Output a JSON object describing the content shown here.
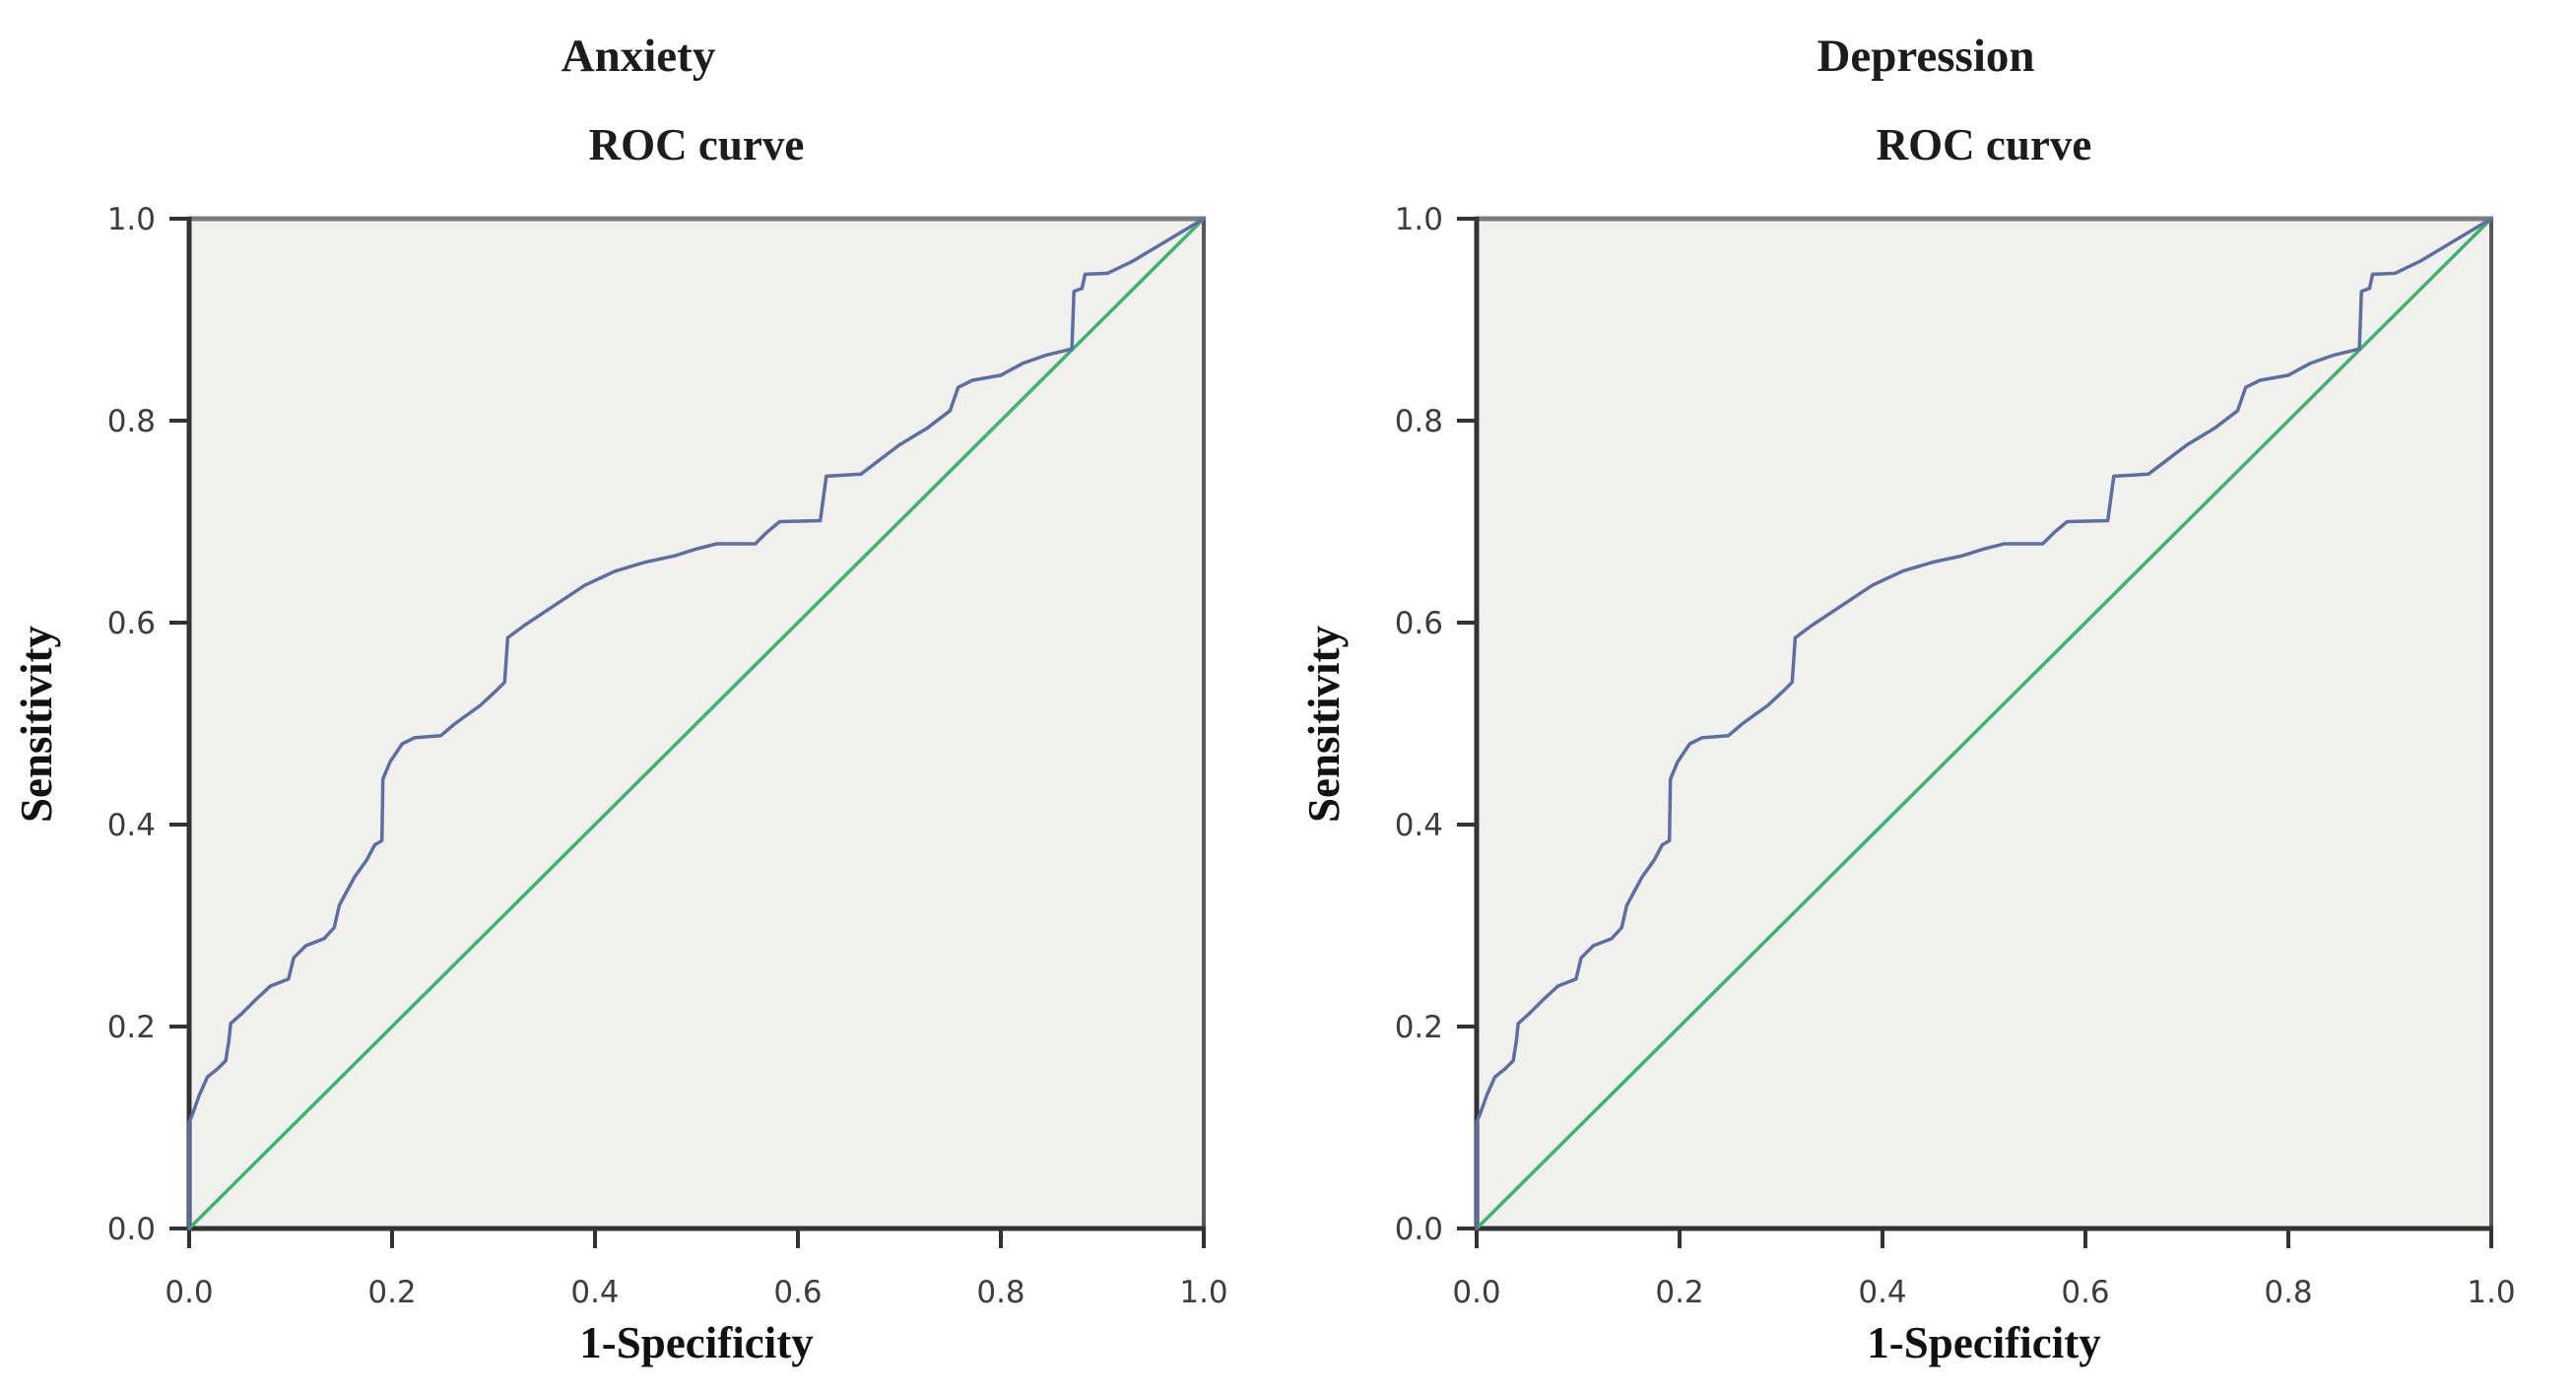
{
  "page": {
    "background": "#ffffff"
  },
  "chart_data": [
    {
      "type": "line",
      "title": "Anxiety",
      "subtitle": "ROC curve",
      "xlabel": "1-Specificity",
      "ylabel": "Sensitivity",
      "xlim": [
        0.0,
        1.0
      ],
      "ylim": [
        0.0,
        1.0
      ],
      "xticks": [
        "0.0",
        "0.2",
        "0.4",
        "0.6",
        "0.8",
        "1.0"
      ],
      "yticks": [
        "0.0",
        "0.2",
        "0.4",
        "0.6",
        "0.8",
        "1.0"
      ],
      "grid": false,
      "legend": "none",
      "plot_background": "#f0f0ee",
      "axis_color": "#333333",
      "top_border_color": "#7c7c7c",
      "right_border_color": "#585858",
      "series": [
        {
          "name": "ROC curve",
          "color": "#5f6ea0",
          "points": [
            [
              0.0,
              0.0
            ],
            [
              0.0,
              0.105
            ],
            [
              0.004,
              0.115
            ],
            [
              0.01,
              0.132
            ],
            [
              0.018,
              0.15
            ],
            [
              0.028,
              0.158
            ],
            [
              0.036,
              0.166
            ],
            [
              0.039,
              0.185
            ],
            [
              0.041,
              0.203
            ],
            [
              0.052,
              0.213
            ],
            [
              0.065,
              0.226
            ],
            [
              0.08,
              0.24
            ],
            [
              0.098,
              0.247
            ],
            [
              0.103,
              0.268
            ],
            [
              0.115,
              0.28
            ],
            [
              0.133,
              0.287
            ],
            [
              0.143,
              0.298
            ],
            [
              0.148,
              0.32
            ],
            [
              0.163,
              0.348
            ],
            [
              0.175,
              0.365
            ],
            [
              0.183,
              0.38
            ],
            [
              0.19,
              0.384
            ],
            [
              0.191,
              0.445
            ],
            [
              0.198,
              0.462
            ],
            [
              0.21,
              0.48
            ],
            [
              0.222,
              0.486
            ],
            [
              0.248,
              0.488
            ],
            [
              0.262,
              0.5
            ],
            [
              0.287,
              0.518
            ],
            [
              0.303,
              0.533
            ],
            [
              0.311,
              0.541
            ],
            [
              0.314,
              0.585
            ],
            [
              0.33,
              0.597
            ],
            [
              0.36,
              0.617
            ],
            [
              0.39,
              0.637
            ],
            [
              0.42,
              0.651
            ],
            [
              0.45,
              0.66
            ],
            [
              0.478,
              0.666
            ],
            [
              0.5,
              0.673
            ],
            [
              0.52,
              0.678
            ],
            [
              0.558,
              0.678
            ],
            [
              0.57,
              0.69
            ],
            [
              0.582,
              0.7
            ],
            [
              0.622,
              0.701
            ],
            [
              0.628,
              0.745
            ],
            [
              0.662,
              0.747
            ],
            [
              0.7,
              0.776
            ],
            [
              0.728,
              0.793
            ],
            [
              0.75,
              0.81
            ],
            [
              0.758,
              0.833
            ],
            [
              0.772,
              0.84
            ],
            [
              0.8,
              0.845
            ],
            [
              0.822,
              0.857
            ],
            [
              0.845,
              0.865
            ],
            [
              0.87,
              0.871
            ],
            [
              0.872,
              0.928
            ],
            [
              0.88,
              0.931
            ],
            [
              0.883,
              0.945
            ],
            [
              0.905,
              0.946
            ],
            [
              0.93,
              0.958
            ],
            [
              0.96,
              0.976
            ],
            [
              1.0,
              1.0
            ]
          ]
        },
        {
          "name": "Reference diagonal",
          "color": "#3eb271",
          "points": [
            [
              0.0,
              0.0
            ],
            [
              1.0,
              1.0
            ]
          ]
        }
      ]
    },
    {
      "type": "line",
      "title": "Depression",
      "subtitle": "ROC curve",
      "xlabel": "1-Specificity",
      "ylabel": "Sensitivity",
      "xlim": [
        0.0,
        1.0
      ],
      "ylim": [
        0.0,
        1.0
      ],
      "xticks": [
        "0.0",
        "0.2",
        "0.4",
        "0.6",
        "0.8",
        "1.0"
      ],
      "yticks": [
        "0.0",
        "0.2",
        "0.4",
        "0.6",
        "0.8",
        "1.0"
      ],
      "grid": false,
      "legend": "none",
      "plot_background": "#f0f0ee",
      "axis_color": "#333333",
      "top_border_color": "#7c7c7c",
      "right_border_color": "#585858",
      "series": [
        {
          "name": "ROC curve",
          "color": "#5f6ea0",
          "points": [
            [
              0.0,
              0.0
            ],
            [
              0.0,
              0.105
            ],
            [
              0.004,
              0.115
            ],
            [
              0.01,
              0.132
            ],
            [
              0.018,
              0.15
            ],
            [
              0.028,
              0.158
            ],
            [
              0.036,
              0.166
            ],
            [
              0.039,
              0.185
            ],
            [
              0.041,
              0.203
            ],
            [
              0.052,
              0.213
            ],
            [
              0.065,
              0.226
            ],
            [
              0.08,
              0.24
            ],
            [
              0.098,
              0.247
            ],
            [
              0.103,
              0.268
            ],
            [
              0.115,
              0.28
            ],
            [
              0.133,
              0.287
            ],
            [
              0.143,
              0.298
            ],
            [
              0.148,
              0.32
            ],
            [
              0.163,
              0.348
            ],
            [
              0.175,
              0.365
            ],
            [
              0.183,
              0.38
            ],
            [
              0.19,
              0.384
            ],
            [
              0.191,
              0.445
            ],
            [
              0.198,
              0.462
            ],
            [
              0.21,
              0.48
            ],
            [
              0.222,
              0.486
            ],
            [
              0.248,
              0.488
            ],
            [
              0.262,
              0.5
            ],
            [
              0.287,
              0.518
            ],
            [
              0.303,
              0.533
            ],
            [
              0.311,
              0.541
            ],
            [
              0.314,
              0.585
            ],
            [
              0.33,
              0.597
            ],
            [
              0.36,
              0.617
            ],
            [
              0.39,
              0.637
            ],
            [
              0.42,
              0.651
            ],
            [
              0.45,
              0.66
            ],
            [
              0.478,
              0.666
            ],
            [
              0.5,
              0.673
            ],
            [
              0.52,
              0.678
            ],
            [
              0.558,
              0.678
            ],
            [
              0.57,
              0.69
            ],
            [
              0.582,
              0.7
            ],
            [
              0.622,
              0.701
            ],
            [
              0.628,
              0.745
            ],
            [
              0.662,
              0.747
            ],
            [
              0.7,
              0.776
            ],
            [
              0.728,
              0.793
            ],
            [
              0.75,
              0.81
            ],
            [
              0.758,
              0.833
            ],
            [
              0.772,
              0.84
            ],
            [
              0.8,
              0.845
            ],
            [
              0.822,
              0.857
            ],
            [
              0.845,
              0.865
            ],
            [
              0.87,
              0.871
            ],
            [
              0.872,
              0.928
            ],
            [
              0.88,
              0.931
            ],
            [
              0.883,
              0.945
            ],
            [
              0.905,
              0.946
            ],
            [
              0.93,
              0.958
            ],
            [
              0.96,
              0.976
            ],
            [
              1.0,
              1.0
            ]
          ]
        },
        {
          "name": "Reference diagonal",
          "color": "#3eb271",
          "points": [
            [
              0.0,
              0.0
            ],
            [
              1.0,
              1.0
            ]
          ]
        }
      ]
    }
  ]
}
